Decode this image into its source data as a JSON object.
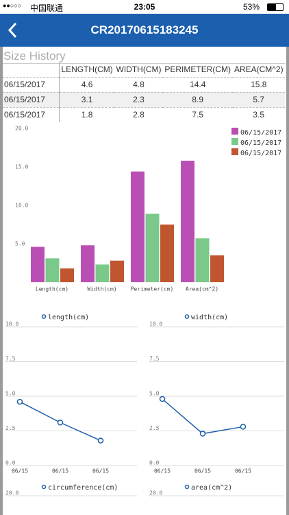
{
  "status_bar": {
    "carrier": "中国联通",
    "time": "23:05",
    "battery": "53%"
  },
  "nav": {
    "title": "CR20170615183245"
  },
  "section_title": "Size History",
  "table": {
    "headers": [
      "LENGTH(CM)",
      "WIDTH(CM)",
      "PERIMETER(CM)",
      "AREA(CM^2)"
    ],
    "rows": [
      [
        "06/15/2017",
        "4.6",
        "4.8",
        "14.4",
        "15.8"
      ],
      [
        "06/15/2017",
        "3.1",
        "2.3",
        "8.9",
        "5.7"
      ],
      [
        "06/15/2017",
        "1.8",
        "2.8",
        "7.5",
        "3.5"
      ]
    ]
  },
  "chart_data": [
    {
      "type": "bar",
      "categories": [
        "Length(cm)",
        "Width(cm)",
        "Perimeter(cm)",
        "Area(cm^2)"
      ],
      "series": [
        {
          "name": "06/15/2017",
          "color": "#b94fb5",
          "values": [
            4.6,
            4.8,
            14.4,
            15.8
          ]
        },
        {
          "name": "06/15/2017",
          "color": "#7ac98a",
          "values": [
            3.1,
            2.3,
            8.9,
            5.7
          ]
        },
        {
          "name": "06/15/2017",
          "color": "#c0562f",
          "values": [
            1.8,
            2.8,
            7.5,
            3.5
          ]
        }
      ],
      "ylim": [
        0,
        20
      ],
      "yticks": [
        {
          "value": 5,
          "label": "5.0"
        },
        {
          "value": 10,
          "label": "10.0"
        },
        {
          "value": 15,
          "label": "15.0"
        },
        {
          "value": 20,
          "label": "20.0"
        }
      ],
      "legend": "right"
    },
    {
      "type": "line",
      "categories": [
        "06/15",
        "06/15",
        "06/15"
      ],
      "series": [
        {
          "name": "length(cm)",
          "color": "#1f5fa8",
          "values": [
            4.6,
            3.1,
            1.8
          ]
        }
      ],
      "ylim": [
        0,
        10
      ],
      "yticks": [
        {
          "value": 0,
          "label": "0.0"
        },
        {
          "value": 2.5,
          "label": "2.5"
        },
        {
          "value": 5,
          "label": "5.0"
        },
        {
          "value": 7.5,
          "label": "7.5"
        },
        {
          "value": 10,
          "label": "10.0"
        }
      ],
      "grid": true
    },
    {
      "type": "line",
      "categories": [
        "06/15",
        "06/15",
        "06/15"
      ],
      "series": [
        {
          "name": "width(cm)",
          "color": "#1f5fa8",
          "values": [
            4.8,
            2.3,
            2.8
          ]
        }
      ],
      "ylim": [
        0,
        10
      ],
      "yticks": [
        {
          "value": 0,
          "label": "0.0"
        },
        {
          "value": 2.5,
          "label": "2.5"
        },
        {
          "value": 5,
          "label": "5.0"
        },
        {
          "value": 7.5,
          "label": "7.5"
        },
        {
          "value": 10,
          "label": "10.0"
        }
      ],
      "grid": true
    },
    {
      "type": "line",
      "series": [
        {
          "name": "circumference(cm)",
          "color": "#1f5fa8"
        }
      ],
      "ylim": [
        0,
        20
      ],
      "yticks": [
        {
          "value": 20,
          "label": "20.0"
        }
      ],
      "grid": true
    },
    {
      "type": "line",
      "series": [
        {
          "name": "area(cm^2)",
          "color": "#1f5fa8"
        }
      ],
      "ylim": [
        0,
        20
      ],
      "yticks": [
        {
          "value": 20,
          "label": "20.0"
        }
      ],
      "grid": true
    }
  ]
}
